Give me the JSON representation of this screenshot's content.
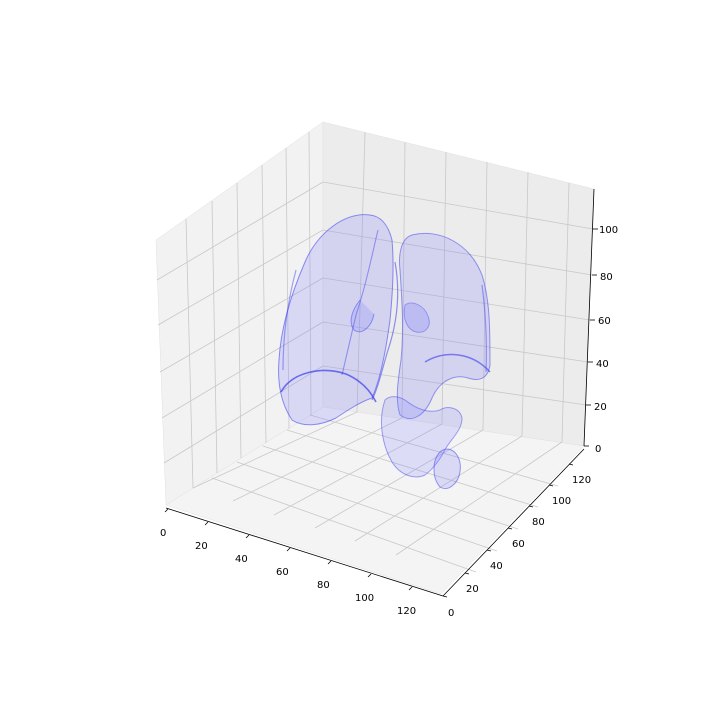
{
  "chart_data": {
    "type": "surface3d",
    "title": "",
    "xlabel": "",
    "ylabel": "",
    "zlabel": "",
    "xlim": [
      0,
      130
    ],
    "ylim": [
      0,
      130
    ],
    "zlim": [
      0,
      115
    ],
    "x_ticks": [
      "0",
      "20",
      "40",
      "60",
      "80",
      "100",
      "120"
    ],
    "y_ticks": [
      "0",
      "20",
      "40",
      "60",
      "80",
      "100",
      "120"
    ],
    "z_ticks": [
      "0",
      "20",
      "40",
      "60",
      "80",
      "100"
    ],
    "grid": true,
    "pane_color": "#f2f2f2",
    "surface_color": "#7b7bff",
    "edge_color": "#3a3aee",
    "surface_alpha": 0.22,
    "subject": "lung-volume-mesh"
  }
}
